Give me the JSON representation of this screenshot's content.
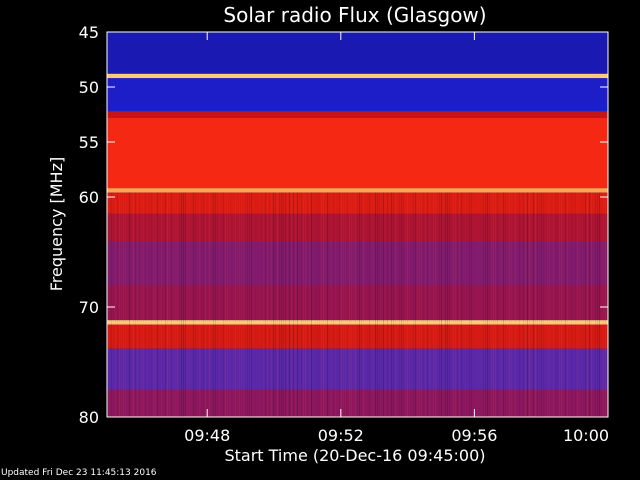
{
  "chart_data": {
    "type": "heatmap",
    "title": "Solar radio Flux (Glasgow)",
    "xlabel": "Start Time (20-Dec-16 09:45:00)",
    "ylabel": "Frequency [MHz]",
    "x_range": [
      "09:45:00",
      "10:00:00"
    ],
    "y_range_mhz": [
      45,
      80
    ],
    "y_inverted": true,
    "x_ticks": [
      "09:48",
      "09:52",
      "09:56",
      "10:00"
    ],
    "y_ticks": [
      45,
      50,
      55,
      60,
      70,
      80
    ],
    "colormap": "blue-red-yellow",
    "bands": [
      {
        "from_mhz": 45.0,
        "to_mhz": 48.8,
        "level": 0.12
      },
      {
        "from_mhz": 48.8,
        "to_mhz": 49.2,
        "level": 0.95
      },
      {
        "from_mhz": 49.2,
        "to_mhz": 52.2,
        "level": 0.15
      },
      {
        "from_mhz": 52.2,
        "to_mhz": 52.8,
        "level": 0.55
      },
      {
        "from_mhz": 52.8,
        "to_mhz": 59.2,
        "level": 0.72
      },
      {
        "from_mhz": 59.2,
        "to_mhz": 59.6,
        "level": 0.9
      },
      {
        "from_mhz": 59.6,
        "to_mhz": 61.5,
        "level": 0.62
      },
      {
        "from_mhz": 61.5,
        "to_mhz": 64.0,
        "level": 0.48
      },
      {
        "from_mhz": 64.0,
        "to_mhz": 68.0,
        "level": 0.38
      },
      {
        "from_mhz": 68.0,
        "to_mhz": 71.2,
        "level": 0.42
      },
      {
        "from_mhz": 71.2,
        "to_mhz": 71.6,
        "level": 0.95
      },
      {
        "from_mhz": 71.6,
        "to_mhz": 73.8,
        "level": 0.6
      },
      {
        "from_mhz": 73.8,
        "to_mhz": 77.5,
        "level": 0.3
      },
      {
        "from_mhz": 77.5,
        "to_mhz": 80.0,
        "level": 0.4
      }
    ],
    "grid": false,
    "colors": {
      "background": "#000000",
      "frame": "#ffffff",
      "text": "#ffffff"
    }
  },
  "footer": "Updated Fri Dec 23 11:45:13 2016"
}
